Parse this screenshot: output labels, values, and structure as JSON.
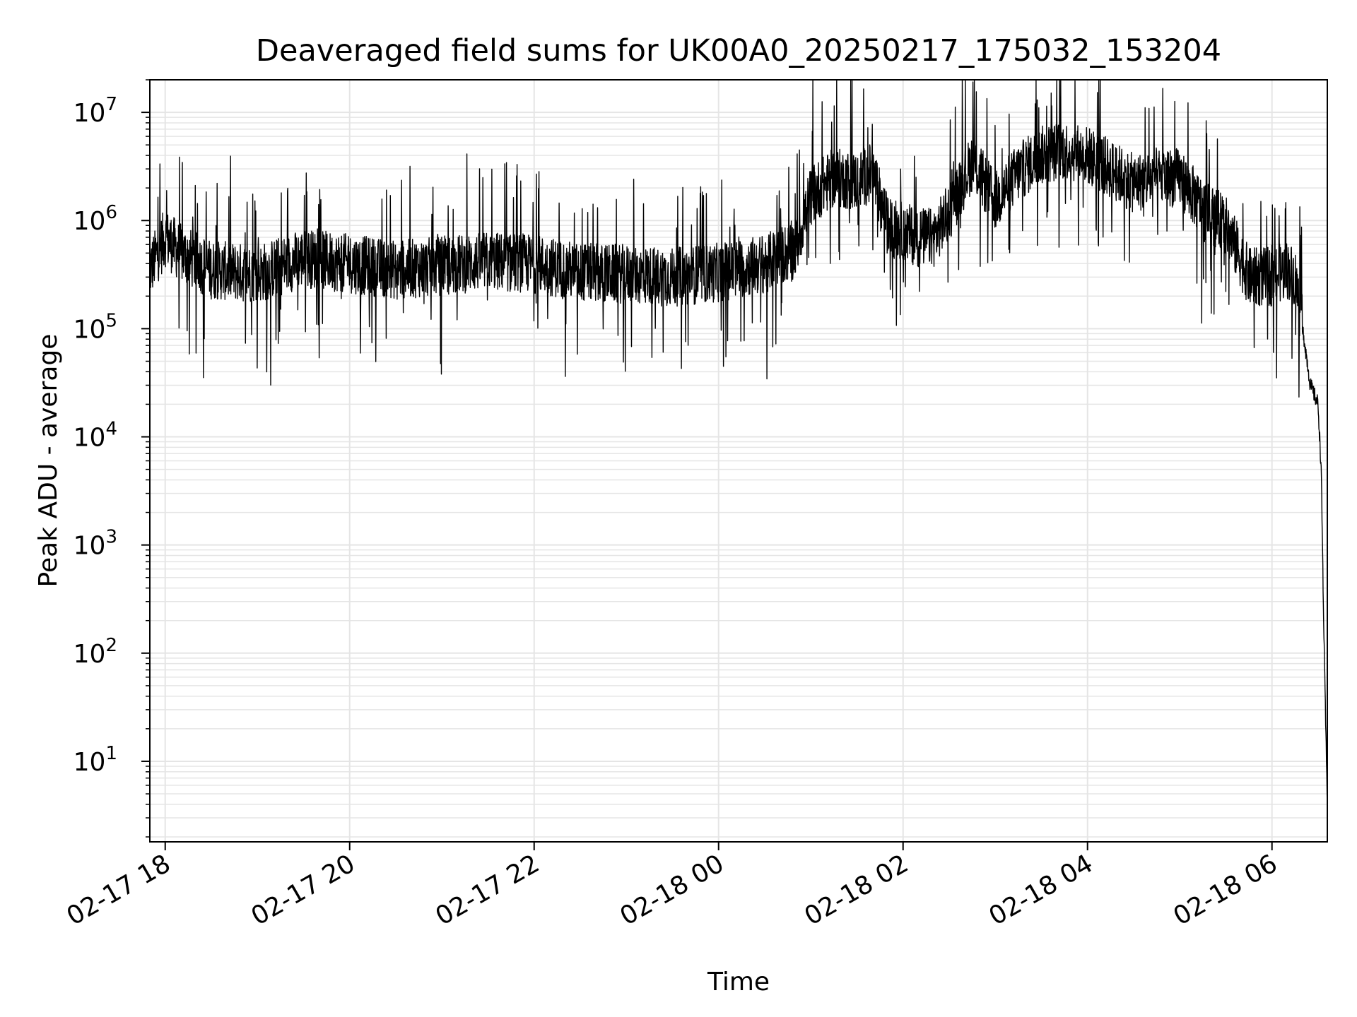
{
  "chart_data": {
    "type": "line",
    "title": "Deaveraged field sums for UK00A0_20250217_175032_153204",
    "xlabel": "Time",
    "ylabel": "Peak ADU - average",
    "yscale": "log",
    "ylim": [
      1.8,
      20000000
    ],
    "xlim": [
      "2025-02-17 17:50",
      "2025-02-18 06:36"
    ],
    "grid": true,
    "line_color": "#000000",
    "grid_color": "#e5e5e5",
    "x_ticks": [
      "2025-02-17 18:00",
      "2025-02-17 20:00",
      "2025-02-17 22:00",
      "2025-02-18 00:00",
      "2025-02-18 02:00",
      "2025-02-18 04:00",
      "2025-02-18 06:00"
    ],
    "x_tick_labels": [
      "02-17 18",
      "02-17 20",
      "02-17 22",
      "02-18 00",
      "02-18 02",
      "02-18 04",
      "02-18 06"
    ],
    "y_ticks": [
      {
        "value": 10,
        "base": "10",
        "exp": "1"
      },
      {
        "value": 100,
        "base": "10",
        "exp": "2"
      },
      {
        "value": 1000,
        "base": "10",
        "exp": "3"
      },
      {
        "value": 10000,
        "base": "10",
        "exp": "4"
      },
      {
        "value": 100000,
        "base": "10",
        "exp": "5"
      },
      {
        "value": 1000000,
        "base": "10",
        "exp": "6"
      },
      {
        "value": 10000000,
        "base": "10",
        "exp": "7"
      }
    ],
    "series": [
      {
        "points": [
          [
            "2025-02-17 17:50",
            350000
          ],
          [
            "2025-02-17 18:00",
            700000
          ],
          [
            "2025-02-17 18:10",
            500000
          ],
          [
            "2025-02-17 18:30",
            350000
          ],
          [
            "2025-02-17 19:00",
            320000
          ],
          [
            "2025-02-17 19:30",
            450000
          ],
          [
            "2025-02-17 20:00",
            400000
          ],
          [
            "2025-02-17 20:30",
            350000
          ],
          [
            "2025-02-17 21:00",
            380000
          ],
          [
            "2025-02-17 21:30",
            420000
          ],
          [
            "2025-02-17 22:00",
            400000
          ],
          [
            "2025-02-17 22:30",
            330000
          ],
          [
            "2025-02-17 23:00",
            320000
          ],
          [
            "2025-02-17 23:30",
            300000
          ],
          [
            "2025-02-18 00:00",
            330000
          ],
          [
            "2025-02-18 00:30",
            400000
          ],
          [
            "2025-02-18 00:50",
            550000
          ],
          [
            "2025-02-18 01:00",
            1700000
          ],
          [
            "2025-02-18 01:15",
            2500000
          ],
          [
            "2025-02-18 01:30",
            2300000
          ],
          [
            "2025-02-18 01:40",
            2800000
          ],
          [
            "2025-02-18 01:50",
            900000
          ],
          [
            "2025-02-18 02:10",
            700000
          ],
          [
            "2025-02-18 02:20",
            700000
          ],
          [
            "2025-02-18 02:30",
            1200000
          ],
          [
            "2025-02-18 02:45",
            3500000
          ],
          [
            "2025-02-18 03:00",
            1500000
          ],
          [
            "2025-02-18 03:15",
            2800000
          ],
          [
            "2025-02-18 03:30",
            4000000
          ],
          [
            "2025-02-18 03:45",
            4500000
          ],
          [
            "2025-02-18 04:00",
            4000000
          ],
          [
            "2025-02-18 04:15",
            3000000
          ],
          [
            "2025-02-18 04:30",
            2200000
          ],
          [
            "2025-02-18 04:45",
            2500000
          ],
          [
            "2025-02-18 05:00",
            2500000
          ],
          [
            "2025-02-18 05:15",
            1300000
          ],
          [
            "2025-02-18 05:30",
            900000
          ],
          [
            "2025-02-18 05:45",
            300000
          ],
          [
            "2025-02-18 06:00",
            300000
          ],
          [
            "2025-02-18 06:10",
            350000
          ],
          [
            "2025-02-18 06:15",
            300000
          ],
          [
            "2025-02-18 06:20",
            100000
          ],
          [
            "2025-02-18 06:25",
            30000
          ],
          [
            "2025-02-18 06:30",
            20000
          ],
          [
            "2025-02-18 06:32",
            5000
          ],
          [
            "2025-02-18 06:34",
            100
          ],
          [
            "2025-02-18 06:36",
            4
          ]
        ]
      }
    ]
  }
}
